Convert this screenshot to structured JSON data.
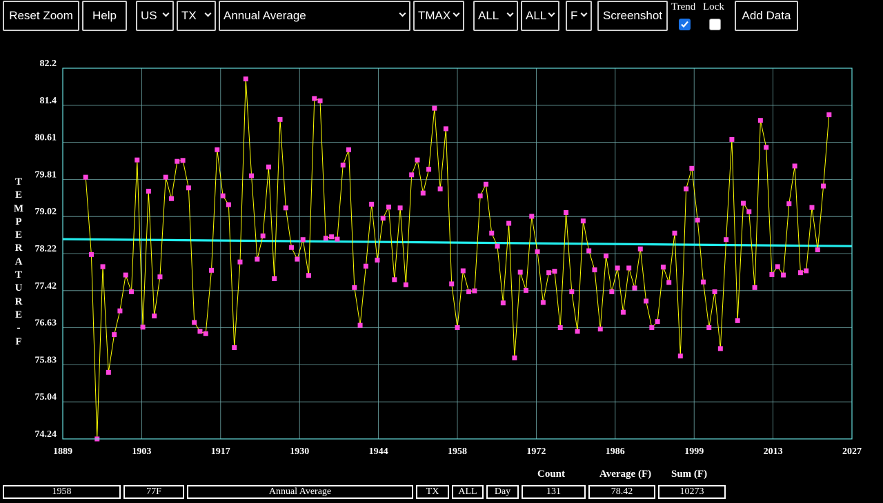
{
  "toolbar": {
    "reset_zoom": "Reset Zoom",
    "help": "Help",
    "country": "US",
    "state": "TX",
    "period": "Annual Average",
    "element": "TMAX",
    "filter1": "ALL",
    "filter2": "ALL",
    "units": "F",
    "screenshot": "Screenshot",
    "trend_label": "Trend",
    "trend_checked": true,
    "lock_label": "Lock",
    "lock_checked": false,
    "add_data": "Add Data"
  },
  "status": {
    "count_label": "Count",
    "average_label": "Average (F)",
    "sum_label": "Sum (F)",
    "year": "1958",
    "value": "77F",
    "period": "Annual Average",
    "state": "TX",
    "filter": "ALL",
    "granularity": "Day",
    "count": "131",
    "average": "78.42",
    "sum": "10273"
  },
  "colors": {
    "series_line": "#ffff00",
    "markers": "#ff44dd",
    "trend": "#22eeee",
    "grid": "#6fa8a8",
    "frame": "#66dddd"
  },
  "chart_data": {
    "type": "line",
    "ylabel": "TEMPERATURE - F",
    "xlim": [
      1889,
      2027
    ],
    "ylim": [
      74.24,
      82.2
    ],
    "xticks": [
      "1889",
      "1903",
      "1917",
      "1930",
      "1944",
      "1958",
      "1972",
      "1986",
      "1999",
      "2013",
      "2027"
    ],
    "yticks": [
      "82.2",
      "81.4",
      "80.61",
      "79.81",
      "79.02",
      "78.22",
      "77.42",
      "76.63",
      "75.83",
      "75.04",
      "74.24"
    ],
    "grid": true,
    "series": [
      {
        "type": "line",
        "x": [
          1893,
          1894,
          1895,
          1896,
          1897,
          1898,
          1899,
          1900,
          1901,
          1902,
          1903,
          1904,
          1905,
          1906,
          1907,
          1908,
          1909,
          1910,
          1911,
          1912,
          1913,
          1914,
          1915,
          1916,
          1917,
          1918,
          1919,
          1920,
          1921,
          1922,
          1923,
          1924,
          1925,
          1926,
          1927,
          1928,
          1929,
          1930,
          1931,
          1932,
          1933,
          1934,
          1935,
          1936,
          1937,
          1938,
          1939,
          1940,
          1941,
          1942,
          1943,
          1944,
          1945,
          1946,
          1947,
          1948,
          1949,
          1950,
          1951,
          1952,
          1953,
          1954,
          1955,
          1956,
          1957,
          1958,
          1959,
          1960,
          1961,
          1962,
          1963,
          1964,
          1965,
          1966,
          1967,
          1968,
          1969,
          1970,
          1971,
          1972,
          1973,
          1974,
          1975,
          1976,
          1977,
          1978,
          1979,
          1980,
          1981,
          1982,
          1983,
          1984,
          1985,
          1986,
          1987,
          1988,
          1989,
          1990,
          1991,
          1992,
          1993,
          1994,
          1995,
          1996,
          1997,
          1998,
          1999,
          2000,
          2001,
          2002,
          2003,
          2004,
          2005,
          2006,
          2007,
          2008,
          2009,
          2010,
          2011,
          2012,
          2013,
          2014,
          2015,
          2016,
          2017,
          2018,
          2019,
          2020,
          2021,
          2022,
          2023
        ],
        "y": [
          79.86,
          78.2,
          74.24,
          77.94,
          75.67,
          76.48,
          76.99,
          77.76,
          77.4,
          80.23,
          76.64,
          79.56,
          76.88,
          77.72,
          79.86,
          79.4,
          80.2,
          80.22,
          79.63,
          76.74,
          76.55,
          76.5,
          77.86,
          80.45,
          79.46,
          79.27,
          76.2,
          78.04,
          81.97,
          79.89,
          78.1,
          78.6,
          80.08,
          77.68,
          81.1,
          79.2,
          78.35,
          78.1,
          78.52,
          77.75,
          81.55,
          81.5,
          78.55,
          78.58,
          78.53,
          80.12,
          80.45,
          77.49,
          76.68,
          77.95,
          79.28,
          78.08,
          78.98,
          79.22,
          77.66,
          79.2,
          77.55,
          79.91,
          80.23,
          79.52,
          80.03,
          81.34,
          79.61,
          80.9,
          77.57,
          76.63,
          77.85,
          77.4,
          77.42,
          79.46,
          79.71,
          78.66,
          78.38,
          77.16,
          78.87,
          75.98,
          77.82,
          77.43,
          79.02,
          78.26,
          77.17,
          77.81,
          77.84,
          76.63,
          79.1,
          77.4,
          76.55,
          78.92,
          78.28,
          77.87,
          76.6,
          78.17,
          77.4,
          77.91,
          76.96,
          77.91,
          77.48,
          78.32,
          77.2,
          76.63,
          76.76,
          77.93,
          77.6,
          78.66,
          76.02,
          79.61,
          80.05,
          78.94,
          77.61,
          76.63,
          77.4,
          76.18,
          78.52,
          80.67,
          76.78,
          79.3,
          79.12,
          77.49,
          81.08,
          80.5,
          77.77,
          77.94,
          77.76,
          79.29,
          80.1,
          77.81,
          77.85,
          79.21,
          78.3,
          79.67,
          81.2
        ]
      },
      {
        "name": "Trend",
        "type": "trend",
        "x": [
          1889,
          2027
        ],
        "y": [
          78.53,
          78.38
        ]
      }
    ]
  }
}
